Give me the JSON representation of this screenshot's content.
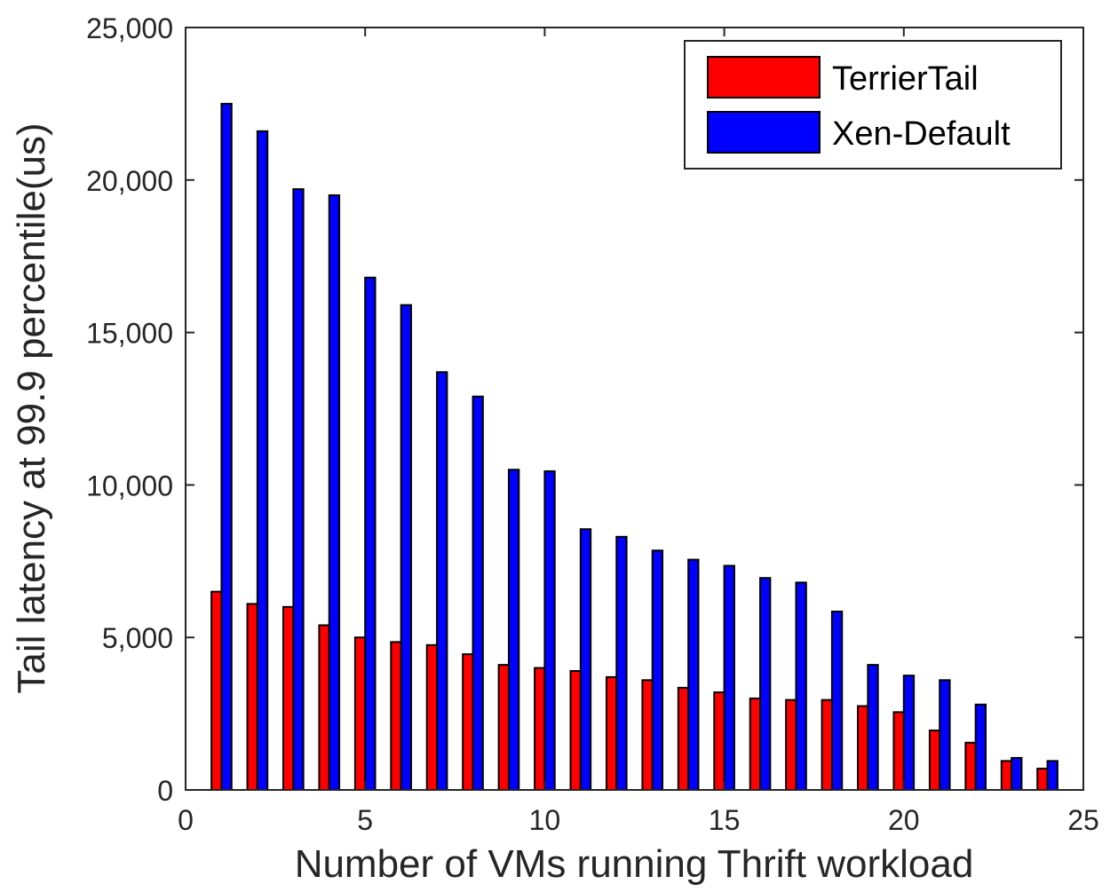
{
  "chart_data": {
    "type": "bar",
    "xlabel": "Number of VMs running Thrift workload",
    "ylabel": "Tail latency at 99.9 percentile(us)",
    "xlim": [
      0,
      25
    ],
    "ylim": [
      0,
      25000
    ],
    "xticks": [
      0,
      5,
      10,
      15,
      20,
      25
    ],
    "xtick_labels": [
      "0",
      "5",
      "10",
      "15",
      "20",
      "25"
    ],
    "yticks": [
      0,
      5000,
      10000,
      15000,
      20000,
      25000
    ],
    "ytick_labels": [
      "0",
      "5,000",
      "10,000",
      "15,000",
      "20,000",
      "25,000"
    ],
    "grid": false,
    "legend_position": "top-right",
    "x": [
      1,
      2,
      3,
      4,
      5,
      6,
      7,
      8,
      9,
      10,
      11,
      12,
      13,
      14,
      15,
      16,
      17,
      18,
      19,
      20,
      21,
      22,
      23,
      24
    ],
    "series": [
      {
        "name": "TerrierTail",
        "color": "#ff0000",
        "values": [
          6500,
          6100,
          6000,
          5400,
          5000,
          4850,
          4750,
          4450,
          4100,
          4000,
          3900,
          3700,
          3600,
          3350,
          3200,
          3000,
          2950,
          2950,
          2750,
          2550,
          1950,
          1550,
          950,
          700
        ]
      },
      {
        "name": "Xen-Default",
        "color": "#0000ff",
        "values": [
          22500,
          21600,
          19700,
          19500,
          16800,
          15900,
          13700,
          12900,
          10500,
          10450,
          8550,
          8300,
          7850,
          7550,
          7350,
          6950,
          6800,
          5850,
          4100,
          3750,
          3600,
          2800,
          1050,
          950
        ]
      }
    ]
  }
}
